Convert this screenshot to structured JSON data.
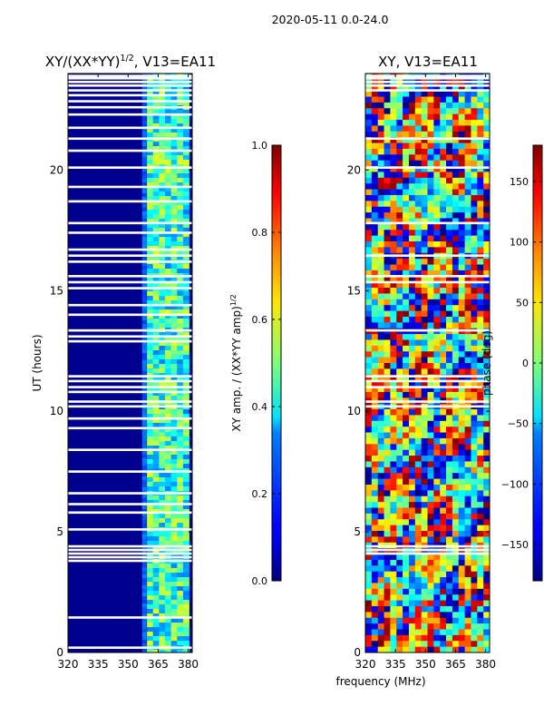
{
  "figure": {
    "suptitle": "2020-05-11 0.0-24.0"
  },
  "chart_data": [
    {
      "type": "heatmap",
      "title_main": "XY/(XX*YY)",
      "title_exp": "1/2",
      "title_suffix": ", V13=EA11",
      "xlabel": "",
      "ylabel": "UT (hours)",
      "xlim": [
        320,
        382
      ],
      "ylim": [
        0,
        24
      ],
      "xticks": [
        "320",
        "335",
        "350",
        "365",
        "380"
      ],
      "xtick_values": [
        320,
        335,
        350,
        365,
        380
      ],
      "yticks": [
        "0",
        "5",
        "10",
        "15",
        "20"
      ],
      "ytick_values": [
        0,
        5,
        10,
        15,
        20
      ],
      "colorbar": {
        "label_main": "XY amp. / (XX*YY amp)",
        "label_exp": "1/2",
        "range": [
          0.0,
          1.0
        ],
        "ticks": [
          "0.0",
          "0.2",
          "0.4",
          "0.6",
          "0.8",
          "1.0"
        ],
        "tick_values": [
          0.0,
          0.2,
          0.4,
          0.6,
          0.8,
          1.0
        ]
      },
      "bright_channels_mhz": [
        361,
        364,
        367,
        370,
        373,
        376,
        379
      ],
      "gap_hours": [
        0.2,
        1.45,
        3.8,
        3.95,
        4.1,
        4.25,
        4.4,
        5.1,
        5.8,
        6.15,
        6.6,
        7.5,
        8.4,
        9.3,
        9.7,
        10.2,
        10.4,
        10.8,
        11.0,
        11.25,
        11.45,
        12.9,
        13.1,
        13.35,
        14.0,
        14.4,
        15.1,
        15.35,
        15.6,
        16.2,
        16.45,
        16.7,
        17.4,
        17.8,
        18.7,
        19.3,
        20.1,
        20.8,
        21.3,
        21.75,
        22.3,
        22.6,
        22.85,
        23.1,
        23.3,
        23.5,
        23.65,
        23.8,
        23.9
      ]
    },
    {
      "type": "heatmap",
      "title": "XY, V13=EA11",
      "xlabel": "frequency (MHz)",
      "ylabel": "",
      "xlim": [
        320,
        382
      ],
      "ylim": [
        0,
        24
      ],
      "xticks": [
        "320",
        "335",
        "350",
        "365",
        "380"
      ],
      "xtick_values": [
        320,
        335,
        350,
        365,
        380
      ],
      "yticks": [
        "0",
        "5",
        "10",
        "15",
        "20"
      ],
      "ytick_values": [
        0,
        5,
        10,
        15,
        20
      ],
      "colorbar": {
        "label": "phase (deg)",
        "range": [
          -180,
          180
        ],
        "ticks": [
          "−150",
          "−100",
          "−50",
          "0",
          "50",
          "100",
          "150"
        ],
        "tick_values": [
          -150,
          -100,
          -50,
          0,
          50,
          100,
          150
        ]
      },
      "gap_hours": [
        4.1,
        4.25,
        4.4,
        10.2,
        10.4,
        11.0,
        11.25,
        11.45,
        13.35,
        15.35,
        15.6,
        16.45,
        17.8,
        20.1,
        21.3,
        23.3,
        23.5,
        23.65,
        23.8,
        23.9
      ]
    }
  ]
}
